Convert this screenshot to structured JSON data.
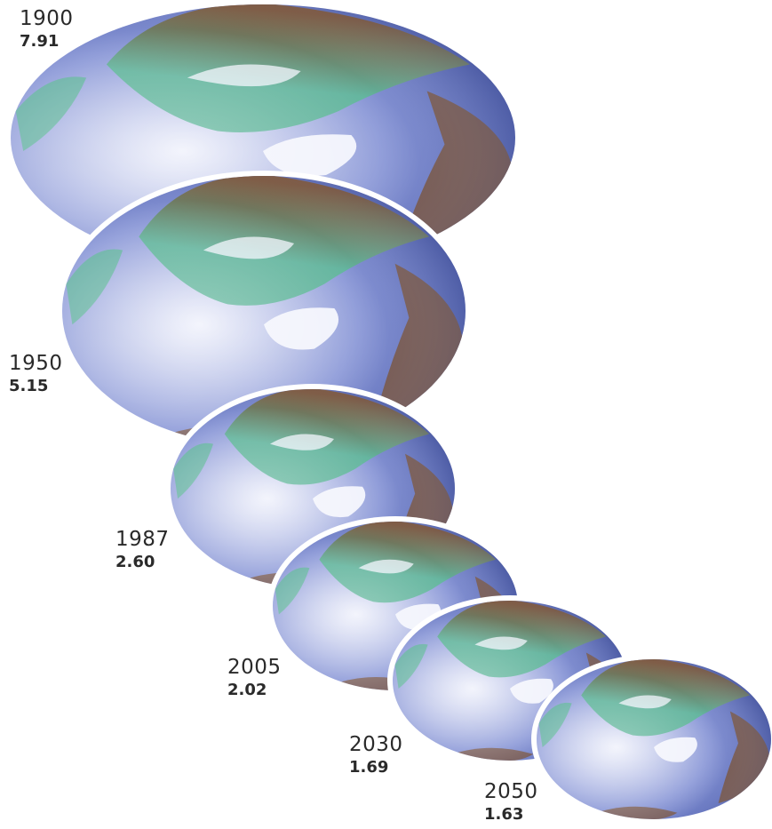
{
  "chart_data": {
    "type": "bubble",
    "title": "",
    "xlabel": "",
    "ylabel": "",
    "categories": [
      "1900",
      "1950",
      "1987",
      "2005",
      "2030",
      "2050"
    ],
    "values": [
      7.91,
      5.15,
      2.6,
      2.02,
      1.69,
      1.63
    ],
    "value_labels": [
      "7.91",
      "5.15",
      "2.60",
      "2.02",
      "1.69",
      "1.63"
    ],
    "mark_icon": "globe-icon",
    "colors": {
      "ocean_light": "#eef0fb",
      "ocean_mid": "#8d9ad8",
      "ocean_dark": "#2c3f9a",
      "land_green": "#5fb59a",
      "land_brown": "#7a5030",
      "ice": "#f4f6fd",
      "outline": "#ffffff"
    }
  }
}
